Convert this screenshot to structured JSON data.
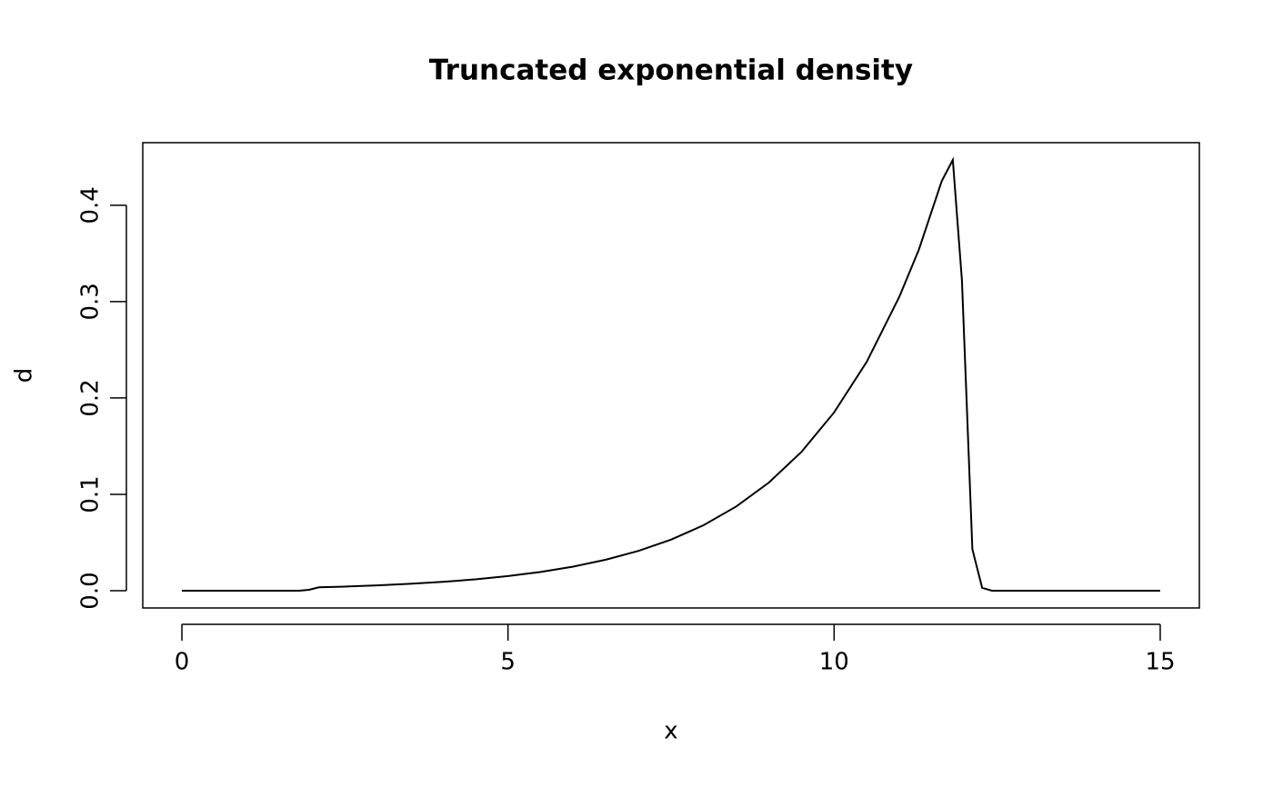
{
  "chart_data": {
    "type": "line",
    "title": "Truncated exponential density",
    "xlabel": "x",
    "ylabel": "d",
    "x": [
      0,
      1.8,
      1.95,
      2.1,
      2.5,
      3,
      3.5,
      4,
      4.5,
      5,
      5.5,
      6,
      6.5,
      7,
      7.5,
      8,
      8.5,
      9,
      9.5,
      10,
      10.5,
      11,
      11.3,
      11.65,
      11.82,
      11.96,
      12.12,
      12.27,
      12.42,
      15
    ],
    "values": [
      0,
      0,
      0.001,
      0.0035,
      0.0043,
      0.0056,
      0.0072,
      0.0092,
      0.0118,
      0.0152,
      0.0195,
      0.025,
      0.0322,
      0.0413,
      0.053,
      0.068,
      0.0874,
      0.1122,
      0.1441,
      0.185,
      0.2375,
      0.305,
      0.354,
      0.425,
      0.447,
      0.322,
      0.043,
      0.003,
      0,
      0
    ],
    "color": "#000000",
    "xlim": [
      -0.6,
      15.6
    ],
    "xticks": [
      0,
      5,
      10,
      15
    ],
    "ylim": [
      -0.0179,
      0.4649
    ],
    "yticks": [
      {
        "value": 0,
        "label": "0.0"
      },
      0.1,
      0.2,
      0.3,
      0.4
    ]
  }
}
